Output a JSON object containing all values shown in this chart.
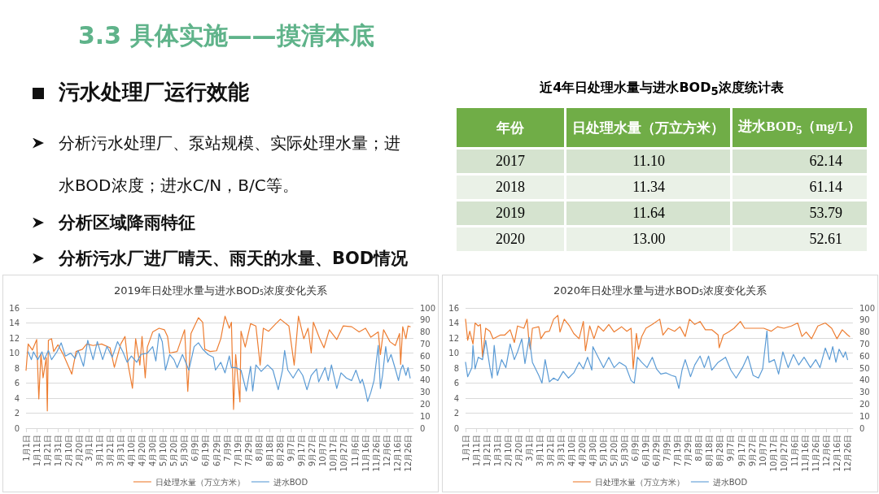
{
  "chart_data": [
    {
      "type": "other",
      "title": "3.3 具体实施——摸清本底",
      "subtitle": "污水处理厂运行效能",
      "annotations": [
        "分析污水处理厂、泵站规模、实际处理水量；进水BOD浓度；进水C/N，B/C等。",
        "分析区域降雨特征",
        "分析污水厂进厂晴天、雨天的水量、BOD情况"
      ]
    },
    {
      "type": "heatmap",
      "title": "近4年日处理水量与进水BOD$_{5}$浓度统计表",
      "ylabel": "年份",
      "categories": [
        "日处理水量（万立方米）",
        "进水BOD$_{5}$（mg/L）"
      ],
      "y_categories": [
        "2017",
        "2018",
        "2019",
        "2020"
      ],
      "cells": [
        [
          11.1,
          62.14
        ],
        [
          11.34,
          61.14
        ],
        [
          11.64,
          53.79
        ],
        [
          13.0,
          52.61
        ]
      ],
      "cell_labels": [
        [
          "11.10",
          "62.14"
        ],
        [
          "11.34",
          "61.14"
        ],
        [
          "11.64",
          "53.79"
        ],
        [
          "13.00",
          "52.61"
        ]
      ]
    },
    {
      "type": "line",
      "title": "2019年日处理水量与进水BOD$_{5}$浓度变化关系",
      "xlim": [
        "2019-01-01",
        "2019-12-31"
      ],
      "xticks": [
        {
          "value": "2019-01-01",
          "label": "1月1日"
        },
        {
          "value": "2019-01-11",
          "label": "1月11日"
        },
        {
          "value": "2019-01-21",
          "label": "1月21日"
        },
        {
          "value": "2019-01-31",
          "label": "1月31日"
        },
        {
          "value": "2019-02-10",
          "label": "2月10日"
        },
        {
          "value": "2019-02-20",
          "label": "2月20日"
        },
        {
          "value": "2019-03-01",
          "label": "3月1日"
        },
        {
          "value": "2019-03-11",
          "label": "3月11日"
        },
        {
          "value": "2019-03-21",
          "label": "3月21日"
        },
        {
          "value": "2019-03-31",
          "label": "3月31日"
        },
        {
          "value": "2019-04-10",
          "label": "4月10日"
        },
        {
          "value": "2019-04-20",
          "label": "4月20日"
        },
        {
          "value": "2019-04-30",
          "label": "4月30日"
        },
        {
          "value": "2019-05-10",
          "label": "5月10日"
        },
        {
          "value": "2019-05-20",
          "label": "5月20日"
        },
        {
          "value": "2019-05-30",
          "label": "5月30日"
        },
        {
          "value": "2019-06-09",
          "label": "6月9日"
        },
        {
          "value": "2019-06-19",
          "label": "6月19日"
        },
        {
          "value": "2019-06-29",
          "label": "6月29日"
        },
        {
          "value": "2019-07-09",
          "label": "7月9日"
        },
        {
          "value": "2019-07-19",
          "label": "7月19日"
        },
        {
          "value": "2019-07-29",
          "label": "7月29日"
        },
        {
          "value": "2019-08-08",
          "label": "8月8日"
        },
        {
          "value": "2019-08-18",
          "label": "8月18日"
        },
        {
          "value": "2019-08-28",
          "label": "8月28日"
        },
        {
          "value": "2019-09-07",
          "label": "9月7日"
        },
        {
          "value": "2019-09-17",
          "label": "9月17日"
        },
        {
          "value": "2019-09-27",
          "label": "9月27日"
        },
        {
          "value": "2019-10-07",
          "label": "10月7日"
        },
        {
          "value": "2019-10-17",
          "label": "10月17日"
        },
        {
          "value": "2019-10-27",
          "label": "10月27日"
        },
        {
          "value": "2019-11-06",
          "label": "11月6日"
        },
        {
          "value": "2019-11-16",
          "label": "11月16日"
        },
        {
          "value": "2019-11-26",
          "label": "11月26日"
        },
        {
          "value": "2019-12-06",
          "label": "12月6日"
        },
        {
          "value": "2019-12-16",
          "label": "12月16日"
        },
        {
          "value": "2019-12-26",
          "label": "12月26日"
        }
      ],
      "ylim": [
        0,
        16
      ],
      "yticks": [
        0,
        2,
        4,
        6,
        8,
        10,
        12,
        14,
        16
      ],
      "y2lim": [
        0,
        100
      ],
      "y2ticks": [
        0,
        10,
        20,
        30,
        40,
        50,
        60,
        70,
        80,
        90,
        100
      ],
      "grid": "y",
      "legend": "bottom",
      "marker": "none",
      "series": [
        {
          "name": "日处理水量（万立方米）",
          "color": "#ed7d31",
          "x": [
            "2019-01-01",
            "2019-01-03",
            "2019-01-07",
            "2019-01-11",
            "2019-01-13",
            "2019-01-15",
            "2019-01-17",
            "2019-01-20",
            "2019-01-21",
            "2019-01-22",
            "2019-01-25",
            "2019-01-27",
            "2019-01-31",
            "2019-02-05",
            "2019-02-13",
            "2019-02-17",
            "2019-02-23",
            "2019-02-27",
            "2019-03-05",
            "2019-03-13",
            "2019-03-21",
            "2019-03-25",
            "2019-03-31",
            "2019-04-04",
            "2019-04-07",
            "2019-04-11",
            "2019-04-14",
            "2019-04-18",
            "2019-04-20",
            "2019-04-23",
            "2019-04-25",
            "2019-04-30",
            "2019-05-06",
            "2019-05-11",
            "2019-05-14",
            "2019-05-16",
            "2019-05-23",
            "2019-05-30",
            "2019-06-02",
            "2019-06-05",
            "2019-06-12",
            "2019-06-16",
            "2019-06-18",
            "2019-06-23",
            "2019-06-29",
            "2019-07-03",
            "2019-07-07",
            "2019-07-11",
            "2019-07-13",
            "2019-07-15",
            "2019-07-17",
            "2019-07-21",
            "2019-07-22",
            "2019-07-26",
            "2019-07-31",
            "2019-08-05",
            "2019-08-09",
            "2019-08-12",
            "2019-08-17",
            "2019-08-23",
            "2019-08-28",
            "2019-09-05",
            "2019-09-10",
            "2019-09-14",
            "2019-09-19",
            "2019-09-23",
            "2019-09-26",
            "2019-09-28",
            "2019-10-04",
            "2019-10-08",
            "2019-10-13",
            "2019-10-20",
            "2019-10-26",
            "2019-11-03",
            "2019-11-10",
            "2019-11-16",
            "2019-11-21",
            "2019-11-28",
            "2019-11-30",
            "2019-12-03",
            "2019-12-09",
            "2019-12-14",
            "2019-12-18",
            "2019-12-19",
            "2019-12-21",
            "2019-12-24",
            "2019-12-26",
            "2019-12-28"
          ],
          "values": [
            7.7,
            11.2,
            10.4,
            11.8,
            3.9,
            9.9,
            6.7,
            9.4,
            2.3,
            11.7,
            11.9,
            10.2,
            11.1,
            9.8,
            7.2,
            10.2,
            10.5,
            11.2,
            11.0,
            11.2,
            10.7,
            8.1,
            11.2,
            12.2,
            8.4,
            5.3,
            11.9,
            8.4,
            12.2,
            6.7,
            10.8,
            12.8,
            13.3,
            13.1,
            12.2,
            10.0,
            10.2,
            13.1,
            4.9,
            12.6,
            14.7,
            14.1,
            10.5,
            10.2,
            10.3,
            11.9,
            14.9,
            13.3,
            14.1,
            2.5,
            9.8,
            3.5,
            12.9,
            10.8,
            13.9,
            13.6,
            8.4,
            13.3,
            12.9,
            13.8,
            14.5,
            13.6,
            8.4,
            14.9,
            11.9,
            13.3,
            10.0,
            14.1,
            11.9,
            10.7,
            13.1,
            11.8,
            13.6,
            13.5,
            12.8,
            13.3,
            12.1,
            12.8,
            9.8,
            13.1,
            11.5,
            11.0,
            12.6,
            8.5,
            13.5,
            11.9,
            13.6,
            13.5
          ]
        },
        {
          "name": "进水BOD",
          "color": "#5b9bd5",
          "axis": "y2",
          "x": [
            "2019-01-03",
            "2019-01-06",
            "2019-01-08",
            "2019-01-12",
            "2019-01-16",
            "2019-01-18",
            "2019-01-22",
            "2019-01-25",
            "2019-01-30",
            "2019-02-03",
            "2019-02-07",
            "2019-02-12",
            "2019-02-16",
            "2019-02-19",
            "2019-02-24",
            "2019-02-28",
            "2019-03-05",
            "2019-03-09",
            "2019-03-14",
            "2019-03-18",
            "2019-03-23",
            "2019-03-28",
            "2019-04-02",
            "2019-04-06",
            "2019-04-10",
            "2019-04-15",
            "2019-04-19",
            "2019-04-25",
            "2019-04-30",
            "2019-05-03",
            "2019-05-06",
            "2019-05-09",
            "2019-05-12",
            "2019-05-16",
            "2019-05-20",
            "2019-05-23",
            "2019-05-28",
            "2019-06-03",
            "2019-06-08",
            "2019-06-12",
            "2019-06-16",
            "2019-06-21",
            "2019-06-26",
            "2019-06-28",
            "2019-07-03",
            "2019-07-07",
            "2019-07-11",
            "2019-07-13",
            "2019-07-17",
            "2019-07-22",
            "2019-07-27",
            "2019-07-31",
            "2019-08-02",
            "2019-08-05",
            "2019-08-10",
            "2019-08-16",
            "2019-08-21",
            "2019-08-26",
            "2019-08-30",
            "2019-09-01",
            "2019-09-04",
            "2019-09-09",
            "2019-09-14",
            "2019-09-18",
            "2019-09-22",
            "2019-09-26",
            "2019-10-01",
            "2019-10-03",
            "2019-10-09",
            "2019-10-12",
            "2019-10-15",
            "2019-10-20",
            "2019-10-24",
            "2019-10-29",
            "2019-11-03",
            "2019-11-07",
            "2019-11-11",
            "2019-11-13",
            "2019-11-16",
            "2019-11-18",
            "2019-11-21",
            "2019-11-24",
            "2019-11-28",
            "2019-11-30",
            "2019-12-02",
            "2019-12-05",
            "2019-12-07",
            "2019-12-10",
            "2019-12-14",
            "2019-12-17",
            "2019-12-19",
            "2019-12-21",
            "2019-12-24",
            "2019-12-26",
            "2019-12-28"
          ],
          "values": [
            63.5,
            57,
            63.5,
            57,
            63.5,
            57,
            64.6,
            57,
            63.5,
            71,
            60,
            62.4,
            58,
            64.6,
            51.5,
            73,
            57,
            72,
            57,
            68,
            59,
            72,
            63.5,
            54.8,
            60,
            54.8,
            61.3,
            62.4,
            67.8,
            55.9,
            78.7,
            72,
            48.3,
            61.3,
            57,
            50.4,
            61.3,
            48.3,
            67.8,
            71,
            65.7,
            61.3,
            59,
            48.3,
            54.8,
            46,
            60,
            50.4,
            50.4,
            48.3,
            30.9,
            51.5,
            30.9,
            52.6,
            47.2,
            52.6,
            48.3,
            32,
            48.3,
            64.6,
            48.3,
            41.7,
            49.3,
            43.9,
            32,
            43.9,
            49.3,
            38.5,
            50.4,
            39.6,
            52.6,
            33,
            46,
            41.7,
            39.6,
            48.3,
            37.4,
            40.7,
            30.9,
            22.2,
            29.8,
            39.6,
            68.9,
            33,
            43.9,
            67.8,
            54.8,
            61.3,
            49.3,
            39.6,
            48.3,
            52.6,
            43.9,
            50.4,
            41.7
          ]
        }
      ]
    },
    {
      "type": "line",
      "title": "2020年日处理水量与进水BOD$_{5}$浓度变化关系",
      "xlim": [
        "2020-01-01",
        "2020-12-31"
      ],
      "xticks": [
        {
          "value": "2020-01-01",
          "label": "1月1日"
        },
        {
          "value": "2020-01-11",
          "label": "1月11日"
        },
        {
          "value": "2020-01-21",
          "label": "1月21日"
        },
        {
          "value": "2020-01-31",
          "label": "1月31日"
        },
        {
          "value": "2020-02-10",
          "label": "2月10日"
        },
        {
          "value": "2020-02-20",
          "label": "2月20日"
        },
        {
          "value": "2020-03-01",
          "label": "3月1日"
        },
        {
          "value": "2020-03-11",
          "label": "3月11日"
        },
        {
          "value": "2020-03-21",
          "label": "3月21日"
        },
        {
          "value": "2020-03-31",
          "label": "3月31日"
        },
        {
          "value": "2020-04-10",
          "label": "4月10日"
        },
        {
          "value": "2020-04-20",
          "label": "4月20日"
        },
        {
          "value": "2020-04-30",
          "label": "4月30日"
        },
        {
          "value": "2020-05-10",
          "label": "5月10日"
        },
        {
          "value": "2020-05-20",
          "label": "5月20日"
        },
        {
          "value": "2020-05-30",
          "label": "5月30日"
        },
        {
          "value": "2020-06-09",
          "label": "6月9日"
        },
        {
          "value": "2020-06-19",
          "label": "6月19日"
        },
        {
          "value": "2020-06-29",
          "label": "6月29日"
        },
        {
          "value": "2020-07-09",
          "label": "7月9日"
        },
        {
          "value": "2020-07-19",
          "label": "7月19日"
        },
        {
          "value": "2020-07-29",
          "label": "7月29日"
        },
        {
          "value": "2020-08-08",
          "label": "8月8日"
        },
        {
          "value": "2020-08-18",
          "label": "8月18日"
        },
        {
          "value": "2020-08-28",
          "label": "8月28日"
        },
        {
          "value": "2020-09-07",
          "label": "9月7日"
        },
        {
          "value": "2020-09-17",
          "label": "9月17日"
        },
        {
          "value": "2020-09-27",
          "label": "9月27日"
        },
        {
          "value": "2020-10-07",
          "label": "10月7日"
        },
        {
          "value": "2020-10-17",
          "label": "10月17日"
        },
        {
          "value": "2020-10-27",
          "label": "10月27日"
        },
        {
          "value": "2020-11-06",
          "label": "11月6日"
        },
        {
          "value": "2020-11-16",
          "label": "11月16日"
        },
        {
          "value": "2020-11-26",
          "label": "11月26日"
        },
        {
          "value": "2020-12-06",
          "label": "12月6日"
        },
        {
          "value": "2020-12-16",
          "label": "12月16日"
        },
        {
          "value": "2020-12-26",
          "label": "12月26日"
        }
      ],
      "ylim": [
        0,
        16
      ],
      "yticks": [
        0,
        2,
        4,
        6,
        8,
        10,
        12,
        14,
        16
      ],
      "y2lim": [
        0,
        100
      ],
      "y2ticks": [
        0,
        10,
        20,
        30,
        40,
        50,
        60,
        70,
        80,
        90,
        100
      ],
      "grid": "y",
      "legend": "bottom",
      "marker": "none",
      "series": [
        {
          "name": "日处理水量（万立方米）",
          "color": "#ed7d31",
          "x": [
            "2020-01-01",
            "2020-01-03",
            "2020-01-05",
            "2020-01-08",
            "2020-01-10",
            "2020-01-13",
            "2020-01-15",
            "2020-01-17",
            "2020-01-20",
            "2020-01-24",
            "2020-01-27",
            "2020-02-03",
            "2020-02-07",
            "2020-02-12",
            "2020-02-16",
            "2020-02-19",
            "2020-02-25",
            "2020-02-28",
            "2020-03-01",
            "2020-03-02",
            "2020-03-04",
            "2020-03-10",
            "2020-03-12",
            "2020-03-16",
            "2020-03-20",
            "2020-03-24",
            "2020-03-28",
            "2020-03-30",
            "2020-04-03",
            "2020-04-08",
            "2020-04-12",
            "2020-04-17",
            "2020-04-21",
            "2020-04-23",
            "2020-04-27",
            "2020-05-01",
            "2020-05-05",
            "2020-05-10",
            "2020-05-15",
            "2020-05-20",
            "2020-05-27",
            "2020-06-01",
            "2020-06-05",
            "2020-06-07",
            "2020-06-10",
            "2020-06-12",
            "2020-06-15",
            "2020-06-19",
            "2020-06-25",
            "2020-07-02",
            "2020-07-05",
            "2020-07-10",
            "2020-07-16",
            "2020-07-21",
            "2020-07-26",
            "2020-07-30",
            "2020-08-04",
            "2020-08-09",
            "2020-08-14",
            "2020-08-20",
            "2020-08-26",
            "2020-08-27",
            "2020-08-31",
            "2020-09-05",
            "2020-09-10",
            "2020-09-16",
            "2020-09-20",
            "2020-09-27",
            "2020-10-02",
            "2020-10-08",
            "2020-10-15",
            "2020-10-21",
            "2020-10-27",
            "2020-11-03",
            "2020-11-09",
            "2020-11-13",
            "2020-11-17",
            "2020-11-22",
            "2020-11-28",
            "2020-12-05",
            "2020-12-11",
            "2020-12-16",
            "2020-12-21",
            "2020-12-26",
            "2020-12-28"
          ],
          "values": [
            14.5,
            11.7,
            12.9,
            11.2,
            14.0,
            13.6,
            13.8,
            9.5,
            13.3,
            12.9,
            11.9,
            12.4,
            12.4,
            13.1,
            11.4,
            13.6,
            13.3,
            14.5,
            11.2,
            10.5,
            13.3,
            13.5,
            11.9,
            12.8,
            12.9,
            14.5,
            15.0,
            12.8,
            14.5,
            13.6,
            12.6,
            11.9,
            14.2,
            10.3,
            13.6,
            11.9,
            13.6,
            12.9,
            13.8,
            12.8,
            13.5,
            12.9,
            13.3,
            7.9,
            12.6,
            10.5,
            12.2,
            13.3,
            13.8,
            14.5,
            12.4,
            13.3,
            12.9,
            13.5,
            12.2,
            14.5,
            13.8,
            14.2,
            13.1,
            13.1,
            12.4,
            10.7,
            12.4,
            12.8,
            13.3,
            14.2,
            13.3,
            13.3,
            13.3,
            13.3,
            12.9,
            13.5,
            13.3,
            13.6,
            14.0,
            12.2,
            12.8,
            11.9,
            13.6,
            14.0,
            13.3,
            11.9,
            13.1,
            12.4,
            12.2
          ]
        },
        {
          "name": "进水BOD",
          "color": "#5b9bd5",
          "axis": "y2",
          "x": [
            "2020-01-01",
            "2020-01-03",
            "2020-01-07",
            "2020-01-08",
            "2020-01-10",
            "2020-01-13",
            "2020-01-17",
            "2020-01-20",
            "2020-01-24",
            "2020-01-26",
            "2020-01-28",
            "2020-01-31",
            "2020-02-04",
            "2020-02-08",
            "2020-02-12",
            "2020-02-16",
            "2020-02-19",
            "2020-02-23",
            "2020-02-26",
            "2020-03-01",
            "2020-03-04",
            "2020-03-10",
            "2020-03-13",
            "2020-03-16",
            "2020-03-20",
            "2020-03-24",
            "2020-03-28",
            "2020-04-02",
            "2020-04-07",
            "2020-04-12",
            "2020-04-17",
            "2020-04-21",
            "2020-04-25",
            "2020-04-29",
            "2020-04-30",
            "2020-05-05",
            "2020-05-10",
            "2020-05-15",
            "2020-05-20",
            "2020-05-25",
            "2020-05-31",
            "2020-06-05",
            "2020-06-08",
            "2020-06-11",
            "2020-06-15",
            "2020-06-20",
            "2020-06-25",
            "2020-06-29",
            "2020-07-03",
            "2020-07-08",
            "2020-07-13",
            "2020-07-17",
            "2020-07-20",
            "2020-07-23",
            "2020-07-26",
            "2020-07-31",
            "2020-08-04",
            "2020-08-09",
            "2020-08-13",
            "2020-08-17",
            "2020-08-20",
            "2020-08-26",
            "2020-09-02",
            "2020-09-07",
            "2020-09-12",
            "2020-09-18",
            "2020-09-23",
            "2020-09-28",
            "2020-10-03",
            "2020-10-07",
            "2020-10-11",
            "2020-10-13",
            "2020-10-18",
            "2020-10-22",
            "2020-10-26",
            "2020-10-31",
            "2020-11-05",
            "2020-11-10",
            "2020-11-15",
            "2020-11-21",
            "2020-11-26",
            "2020-11-30",
            "2020-12-05",
            "2020-12-09",
            "2020-12-12",
            "2020-12-15",
            "2020-12-18",
            "2020-12-22",
            "2020-12-24",
            "2020-12-26"
          ],
          "values": [
            54.8,
            42.8,
            50.4,
            68.9,
            49.3,
            59,
            57,
            73,
            50.4,
            41.7,
            68.9,
            43.9,
            57,
            50.4,
            70,
            57,
            63.5,
            74.3,
            53.7,
            75.4,
            54.8,
            43.9,
            37.4,
            57,
            38.5,
            41.7,
            39.6,
            47.2,
            41.7,
            46,
            54.8,
            49.3,
            59,
            48.3,
            67.8,
            59,
            50.4,
            59,
            50.4,
            54.8,
            51.5,
            39.6,
            37.4,
            59,
            54.8,
            50.4,
            59,
            49.3,
            45,
            46,
            43.9,
            42.8,
            33,
            48.3,
            57,
            42.8,
            52.6,
            60,
            50.4,
            60,
            48.3,
            54.8,
            59,
            48.3,
            41.7,
            50.4,
            60,
            43.9,
            41.7,
            49.3,
            80.9,
            54.8,
            57,
            45,
            63.5,
            50.4,
            61.3,
            52.6,
            59,
            50.4,
            57,
            50.4,
            66.7,
            57,
            67.8,
            54.8,
            65.7,
            59,
            63.5,
            57
          ]
        }
      ]
    }
  ]
}
